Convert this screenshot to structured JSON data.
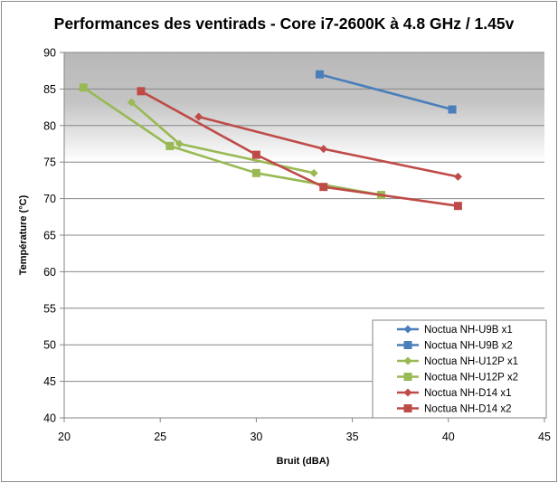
{
  "chart_data": {
    "type": "line",
    "title": "Performances des ventirads - Core i7-2600K à 4.8 GHz / 1.45v",
    "xlabel": "Bruit (dBA)",
    "ylabel": "Température (°C)",
    "xlim": [
      20,
      45
    ],
    "ylim": [
      40,
      90
    ],
    "x_ticks": [
      20,
      25,
      30,
      35,
      40,
      45
    ],
    "y_ticks": [
      40,
      45,
      50,
      55,
      60,
      65,
      70,
      75,
      80,
      85,
      90
    ],
    "grid": "horizontal",
    "legend_position": "bottom-right",
    "background_band": {
      "from": 75,
      "to": 90,
      "description": "gray gradient band"
    },
    "series": [
      {
        "name": "Noctua NH-U9B x1",
        "color": "#4a7ebb",
        "marker": "diamond",
        "x": [],
        "y": []
      },
      {
        "name": "Noctua NH-U9B x2",
        "color": "#4a7ebb",
        "marker": "square",
        "x": [
          33.3,
          40.2
        ],
        "y": [
          87.0,
          82.2
        ]
      },
      {
        "name": "Noctua NH-U12P x1",
        "color": "#98b954",
        "marker": "diamond",
        "x": [
          23.5,
          26.0,
          33.0
        ],
        "y": [
          83.2,
          77.5,
          73.5
        ]
      },
      {
        "name": "Noctua NH-U12P x2",
        "color": "#98b954",
        "marker": "square",
        "x": [
          21.0,
          25.5,
          30.0,
          36.5
        ],
        "y": [
          85.2,
          77.2,
          73.5,
          70.5
        ]
      },
      {
        "name": "Noctua NH-D14 x1",
        "color": "#be4b48",
        "marker": "diamond",
        "x": [
          27.0,
          33.5,
          40.5
        ],
        "y": [
          81.2,
          76.8,
          73.0
        ]
      },
      {
        "name": "Noctua NH-D14 x2",
        "color": "#be4b48",
        "marker": "square",
        "x": [
          24.0,
          30.0,
          33.5,
          40.5
        ],
        "y": [
          84.7,
          76.0,
          71.6,
          69.0
        ]
      }
    ]
  }
}
